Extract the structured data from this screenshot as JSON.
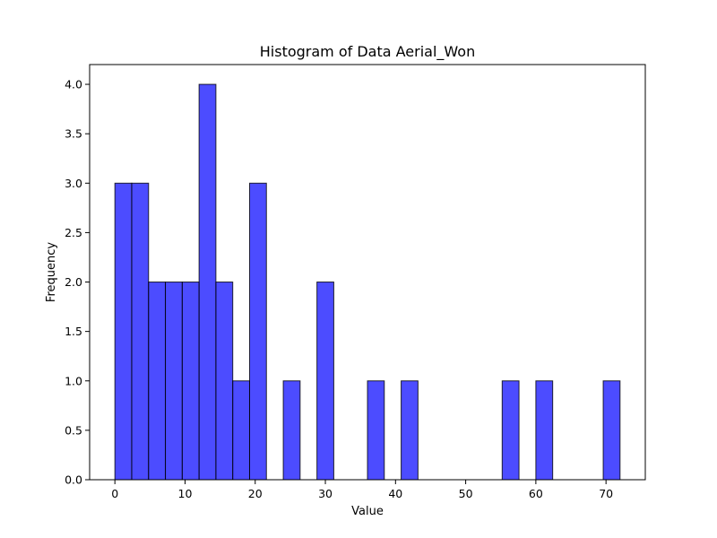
{
  "chart_data": {
    "type": "bar",
    "title": "Histogram of Data Aerial_Won",
    "xlabel": "Value",
    "ylabel": "Frequency",
    "xlim": [
      -3.6,
      75.6
    ],
    "ylim": [
      0,
      4.2
    ],
    "xticks": [
      0,
      10,
      20,
      30,
      40,
      50,
      60,
      70
    ],
    "yticks": [
      "0.0",
      "0.5",
      "1.0",
      "1.5",
      "2.0",
      "2.5",
      "3.0",
      "3.5",
      "4.0"
    ],
    "bin_start": 0,
    "bin_width": 2.4,
    "counts": [
      3,
      3,
      2,
      2,
      2,
      4,
      2,
      1,
      3,
      0,
      1,
      0,
      2,
      0,
      0,
      1,
      0,
      1,
      0,
      0,
      0,
      0,
      0,
      1,
      0,
      1,
      0,
      0,
      0,
      1
    ],
    "bar_color": "#0000ff",
    "bar_opacity": 0.7,
    "edge_color": "#000000",
    "grid": false,
    "legend": "none"
  }
}
